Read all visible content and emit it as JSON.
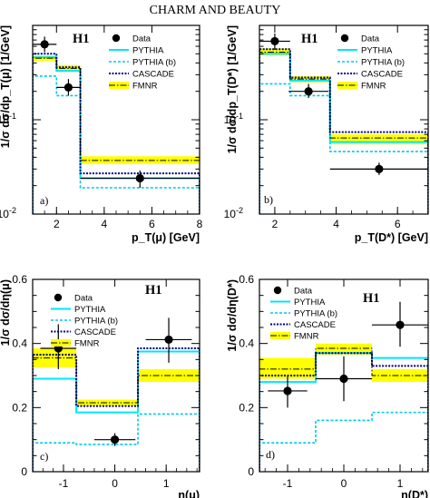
{
  "header": "CHARM AND BEAUTY",
  "legend_labels": [
    "Data",
    "PYTHIA",
    "PYTHIA (b)",
    "CASCADE",
    "FMNR"
  ],
  "colors": {
    "data": "#000000",
    "pythia": "#00e5ff",
    "pythia_b": "#00c8e8",
    "cascade": "#00008b",
    "fmnr": "#000000",
    "band": "#ffff00"
  },
  "chart_data": [
    {
      "type": "histogram",
      "panel_label": "a)",
      "experiment_label": "H1",
      "xlabel": "p_T(μ) [GeV]",
      "ylabel": "1/σ dσ/dp_T(μ) [1/GeV]",
      "xlim": [
        1,
        8
      ],
      "ylim": [
        0.01,
        1
      ],
      "yscale": "log",
      "xticks": [
        2,
        4,
        6,
        8
      ],
      "yticks": [
        {
          "v": 0.01,
          "t": "10",
          "e": "-2"
        },
        {
          "v": 0.1,
          "t": "10",
          "e": "-1"
        }
      ],
      "bins": [
        1,
        2,
        3,
        8
      ],
      "data": {
        "x": [
          1.5,
          2.5,
          5.5
        ],
        "y": [
          0.63,
          0.22,
          0.024
        ],
        "ylo": [
          0.52,
          0.18,
          0.019
        ],
        "yhi": [
          0.76,
          0.27,
          0.029
        ],
        "xerr": [
          0.5,
          0.5,
          2.5
        ]
      },
      "series": [
        {
          "name": "PYTHIA",
          "values": [
            0.46,
            0.33,
            0.024
          ]
        },
        {
          "name": "PYTHIA (b)",
          "values": [
            0.29,
            0.18,
            0.019
          ]
        },
        {
          "name": "CASCADE",
          "values": [
            0.5,
            0.36,
            0.027
          ]
        },
        {
          "name": "FMNR",
          "values": [
            0.45,
            0.35,
            0.037
          ],
          "band_lo": [
            0.42,
            0.33,
            0.034
          ],
          "band_hi": [
            0.48,
            0.38,
            0.041
          ]
        }
      ]
    },
    {
      "type": "histogram",
      "panel_label": "b)",
      "experiment_label": "H1",
      "xlabel": "p_T(D*) [GeV]",
      "ylabel": "1/σ dσ/dp_T(D*) [1/GeV]",
      "xlim": [
        1.5,
        7
      ],
      "ylim": [
        0.01,
        1
      ],
      "yscale": "log",
      "xticks": [
        2,
        4,
        6
      ],
      "yticks": [
        {
          "v": 0.01,
          "t": "10",
          "e": "-2"
        },
        {
          "v": 0.1,
          "t": "10",
          "e": "-1"
        }
      ],
      "bins": [
        1.5,
        2.5,
        3.8,
        7
      ],
      "data": {
        "x": [
          2,
          3.1,
          5.4
        ],
        "y": [
          0.68,
          0.2,
          0.03
        ],
        "ylo": [
          0.55,
          0.17,
          0.026
        ],
        "yhi": [
          0.82,
          0.24,
          0.035
        ],
        "xerr": [
          0.5,
          0.65,
          1.6
        ]
      },
      "series": [
        {
          "name": "PYTHIA",
          "values": [
            0.5,
            0.26,
            0.058
          ]
        },
        {
          "name": "PYTHIA (b)",
          "values": [
            0.24,
            0.18,
            0.046
          ]
        },
        {
          "name": "CASCADE",
          "values": [
            0.56,
            0.28,
            0.074
          ]
        },
        {
          "name": "FMNR",
          "values": [
            0.52,
            0.27,
            0.064
          ],
          "band_lo": [
            0.48,
            0.25,
            0.055
          ],
          "band_hi": [
            0.57,
            0.29,
            0.07
          ]
        }
      ]
    },
    {
      "type": "histogram",
      "panel_label": "c)",
      "experiment_label": "H1",
      "xlabel": "η(μ)",
      "ylabel": "1/σ dσ/dη(μ)",
      "xlim": [
        -1.6,
        1.65
      ],
      "ylim": [
        0,
        0.6
      ],
      "yscale": "linear",
      "xticks": [
        {
          "v": -1,
          "t": "-1"
        },
        {
          "v": 0,
          "t": "0"
        },
        {
          "v": 1,
          "t": "1"
        }
      ],
      "yticks": [
        {
          "v": 0,
          "t": "0"
        },
        {
          "v": 0.2,
          "t": "0.2"
        },
        {
          "v": 0.4,
          "t": "0.4"
        },
        {
          "v": 0.6,
          "t": "0.6"
        }
      ],
      "bins": [
        -1.6,
        -0.75,
        0.45,
        1.65
      ],
      "data": {
        "x": [
          -1.1,
          0,
          1.05
        ],
        "y": [
          0.385,
          0.1,
          0.412
        ],
        "ylo": [
          0.32,
          0.08,
          0.34
        ],
        "yhi": [
          0.46,
          0.12,
          0.48
        ],
        "xerr": [
          0.35,
          0.4,
          0.45
        ]
      },
      "series": [
        {
          "name": "PYTHIA",
          "values": [
            0.29,
            0.185,
            0.375
          ]
        },
        {
          "name": "PYTHIA (b)",
          "values": [
            0.09,
            0.085,
            0.18
          ]
        },
        {
          "name": "CASCADE",
          "values": [
            0.365,
            0.205,
            0.385
          ]
        },
        {
          "name": "FMNR",
          "values": [
            0.355,
            0.215,
            0.3
          ],
          "band_lo": [
            0.325,
            0.205,
            0.28
          ],
          "band_hi": [
            0.385,
            0.225,
            0.32
          ]
        }
      ]
    },
    {
      "type": "histogram",
      "panel_label": "d)",
      "experiment_label": "H1",
      "xlabel": "η(D*)",
      "ylabel": "1/σ dσ/dη(D*)",
      "xlim": [
        -1.5,
        1.5
      ],
      "ylim": [
        0,
        0.6
      ],
      "yscale": "linear",
      "xticks": [
        {
          "v": -1,
          "t": "-1"
        },
        {
          "v": 0,
          "t": "0"
        },
        {
          "v": 1,
          "t": "1"
        }
      ],
      "yticks": [
        {
          "v": 0,
          "t": "0"
        },
        {
          "v": 0.2,
          "t": "0.2"
        },
        {
          "v": 0.4,
          "t": "0.4"
        },
        {
          "v": 0.6,
          "t": "0.6"
        }
      ],
      "bins": [
        -1.5,
        -0.5,
        0.5,
        1.5
      ],
      "data": {
        "x": [
          -1,
          0,
          1
        ],
        "y": [
          0.252,
          0.29,
          0.458
        ],
        "ylo": [
          0.2,
          0.22,
          0.39
        ],
        "yhi": [
          0.3,
          0.36,
          0.53
        ],
        "xerr": [
          0.35,
          0.5,
          0.5
        ]
      },
      "series": [
        {
          "name": "PYTHIA",
          "values": [
            0.28,
            0.37,
            0.355
          ]
        },
        {
          "name": "PYTHIA (b)",
          "values": [
            0.09,
            0.16,
            0.185
          ]
        },
        {
          "name": "CASCADE",
          "values": [
            0.3,
            0.37,
            0.33
          ]
        },
        {
          "name": "FMNR",
          "values": [
            0.32,
            0.385,
            0.3
          ],
          "band_lo": [
            0.29,
            0.365,
            0.28
          ],
          "band_hi": [
            0.355,
            0.4,
            0.32
          ]
        }
      ]
    }
  ]
}
